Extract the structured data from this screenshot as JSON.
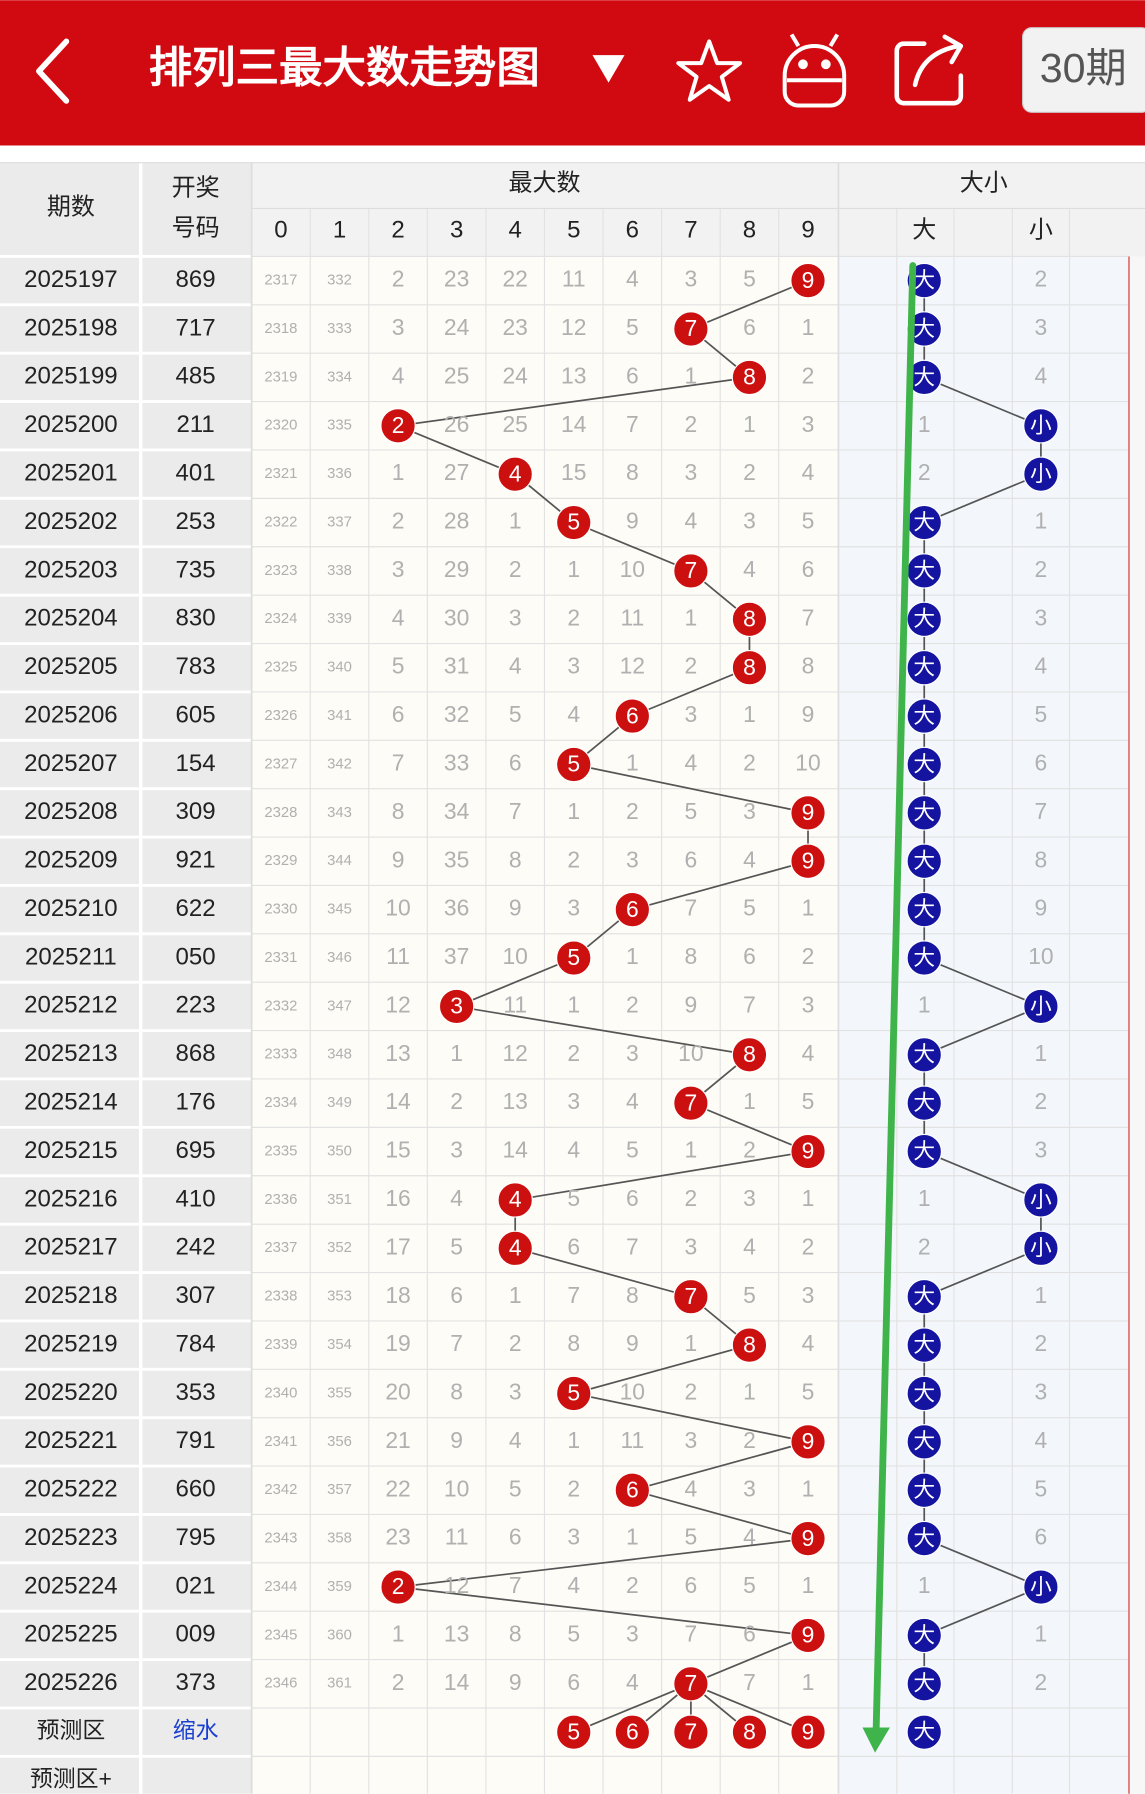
{
  "header": {
    "title": "排列三最大数走势图",
    "period_button": "30期"
  },
  "table": {
    "columns": {
      "period": "期数",
      "number": [
        "开奖",
        "号码"
      ],
      "max_group": "最大数",
      "size_group": "大小",
      "digits": [
        0,
        1,
        2,
        3,
        4,
        5,
        6,
        7,
        8,
        9
      ],
      "big": "大",
      "small": "小"
    },
    "rows": [
      {
        "period": "2025197",
        "number": "869",
        "cells": [
          2317,
          332,
          2,
          23,
          22,
          11,
          4,
          3,
          5,
          9
        ],
        "hit": 9,
        "big": "大",
        "small": 2
      },
      {
        "period": "2025198",
        "number": "717",
        "cells": [
          2318,
          333,
          3,
          24,
          23,
          12,
          5,
          7,
          6,
          1
        ],
        "hit": 7,
        "big": "大",
        "small": 3
      },
      {
        "period": "2025199",
        "number": "485",
        "cells": [
          2319,
          334,
          4,
          25,
          24,
          13,
          6,
          1,
          8,
          2
        ],
        "hit": 8,
        "big": "大",
        "small": 4
      },
      {
        "period": "2025200",
        "number": "211",
        "cells": [
          2320,
          335,
          2,
          26,
          25,
          14,
          7,
          2,
          1,
          3
        ],
        "hit": 2,
        "big": 1,
        "small": "小"
      },
      {
        "period": "2025201",
        "number": "401",
        "cells": [
          2321,
          336,
          1,
          27,
          4,
          15,
          8,
          3,
          2,
          4
        ],
        "hit": 4,
        "big": 2,
        "small": "小"
      },
      {
        "period": "2025202",
        "number": "253",
        "cells": [
          2322,
          337,
          2,
          28,
          1,
          5,
          9,
          4,
          3,
          5
        ],
        "hit": 5,
        "big": "大",
        "small": 1
      },
      {
        "period": "2025203",
        "number": "735",
        "cells": [
          2323,
          338,
          3,
          29,
          2,
          1,
          10,
          7,
          4,
          6
        ],
        "hit": 7,
        "big": "大",
        "small": 2
      },
      {
        "period": "2025204",
        "number": "830",
        "cells": [
          2324,
          339,
          4,
          30,
          3,
          2,
          11,
          1,
          8,
          7
        ],
        "hit": 8,
        "big": "大",
        "small": 3
      },
      {
        "period": "2025205",
        "number": "783",
        "cells": [
          2325,
          340,
          5,
          31,
          4,
          3,
          12,
          2,
          8,
          8
        ],
        "hit": 8,
        "big": "大",
        "small": 4
      },
      {
        "period": "2025206",
        "number": "605",
        "cells": [
          2326,
          341,
          6,
          32,
          5,
          4,
          6,
          3,
          1,
          9
        ],
        "hit": 6,
        "big": "大",
        "small": 5
      },
      {
        "period": "2025207",
        "number": "154",
        "cells": [
          2327,
          342,
          7,
          33,
          6,
          5,
          1,
          4,
          2,
          10
        ],
        "hit": 5,
        "big": "大",
        "small": 6
      },
      {
        "period": "2025208",
        "number": "309",
        "cells": [
          2328,
          343,
          8,
          34,
          7,
          1,
          2,
          5,
          3,
          9
        ],
        "hit": 9,
        "big": "大",
        "small": 7
      },
      {
        "period": "2025209",
        "number": "921",
        "cells": [
          2329,
          344,
          9,
          35,
          8,
          2,
          3,
          6,
          4,
          9
        ],
        "hit": 9,
        "big": "大",
        "small": 8
      },
      {
        "period": "2025210",
        "number": "622",
        "cells": [
          2330,
          345,
          10,
          36,
          9,
          3,
          6,
          7,
          5,
          1
        ],
        "hit": 6,
        "big": "大",
        "small": 9
      },
      {
        "period": "2025211",
        "number": "050",
        "cells": [
          2331,
          346,
          11,
          37,
          10,
          5,
          1,
          8,
          6,
          2
        ],
        "hit": 5,
        "big": "大",
        "small": 10
      },
      {
        "period": "2025212",
        "number": "223",
        "cells": [
          2332,
          347,
          12,
          3,
          11,
          1,
          2,
          9,
          7,
          3
        ],
        "hit": 3,
        "big": 1,
        "small": "小"
      },
      {
        "period": "2025213",
        "number": "868",
        "cells": [
          2333,
          348,
          13,
          1,
          12,
          2,
          3,
          10,
          8,
          4
        ],
        "hit": 8,
        "big": "大",
        "small": 1
      },
      {
        "period": "2025214",
        "number": "176",
        "cells": [
          2334,
          349,
          14,
          2,
          13,
          3,
          4,
          7,
          1,
          5
        ],
        "hit": 7,
        "big": "大",
        "small": 2
      },
      {
        "period": "2025215",
        "number": "695",
        "cells": [
          2335,
          350,
          15,
          3,
          14,
          4,
          5,
          1,
          2,
          9
        ],
        "hit": 9,
        "big": "大",
        "small": 3
      },
      {
        "period": "2025216",
        "number": "410",
        "cells": [
          2336,
          351,
          16,
          4,
          4,
          5,
          6,
          2,
          3,
          1
        ],
        "hit": 4,
        "big": 1,
        "small": "小"
      },
      {
        "period": "2025217",
        "number": "242",
        "cells": [
          2337,
          352,
          17,
          5,
          4,
          6,
          7,
          3,
          4,
          2
        ],
        "hit": 4,
        "big": 2,
        "small": "小"
      },
      {
        "period": "2025218",
        "number": "307",
        "cells": [
          2338,
          353,
          18,
          6,
          1,
          7,
          8,
          7,
          5,
          3
        ],
        "hit": 7,
        "big": "大",
        "small": 1
      },
      {
        "period": "2025219",
        "number": "784",
        "cells": [
          2339,
          354,
          19,
          7,
          2,
          8,
          9,
          1,
          8,
          4
        ],
        "hit": 8,
        "big": "大",
        "small": 2
      },
      {
        "period": "2025220",
        "number": "353",
        "cells": [
          2340,
          355,
          20,
          8,
          3,
          5,
          10,
          2,
          1,
          5
        ],
        "hit": 5,
        "big": "大",
        "small": 3
      },
      {
        "period": "2025221",
        "number": "791",
        "cells": [
          2341,
          356,
          21,
          9,
          4,
          1,
          11,
          3,
          2,
          9
        ],
        "hit": 9,
        "big": "大",
        "small": 4
      },
      {
        "period": "2025222",
        "number": "660",
        "cells": [
          2342,
          357,
          22,
          10,
          5,
          2,
          6,
          4,
          3,
          1
        ],
        "hit": 6,
        "big": "大",
        "small": 5
      },
      {
        "period": "2025223",
        "number": "795",
        "cells": [
          2343,
          358,
          23,
          11,
          6,
          3,
          1,
          5,
          4,
          9
        ],
        "hit": 9,
        "big": "大",
        "small": 6
      },
      {
        "period": "2025224",
        "number": "021",
        "cells": [
          2344,
          359,
          2,
          12,
          7,
          4,
          2,
          6,
          5,
          1
        ],
        "hit": 2,
        "big": 1,
        "small": "小"
      },
      {
        "period": "2025225",
        "number": "009",
        "cells": [
          2345,
          360,
          1,
          13,
          8,
          5,
          3,
          7,
          6,
          9
        ],
        "hit": 9,
        "big": "大",
        "small": 1
      },
      {
        "period": "2025226",
        "number": "373",
        "cells": [
          2346,
          361,
          2,
          14,
          9,
          6,
          4,
          7,
          7,
          1
        ],
        "hit": 7,
        "big": "大",
        "small": 2
      }
    ],
    "predict": {
      "label": "预测区",
      "link": "缩水",
      "cells": [
        null,
        null,
        null,
        null,
        null,
        5,
        6,
        7,
        8,
        9
      ],
      "big": "大"
    },
    "predict_plus": "预测区+"
  }
}
